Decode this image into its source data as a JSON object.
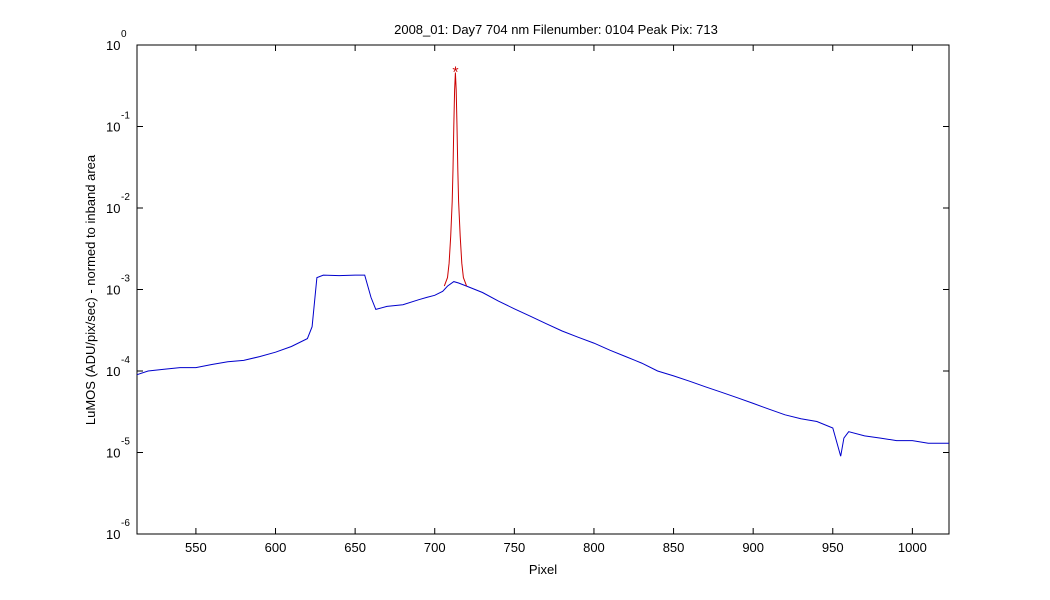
{
  "chart_data": {
    "type": "line",
    "title": "2008_01: Day7  704 nm  Filenumber: 0104 Peak Pix: 713",
    "xlabel": "Pixel",
    "ylabel": "LuMOS (ADU/pix/sec) - normed to inband area",
    "xlim": [
      513,
      1023
    ],
    "ylim": [
      1e-06,
      1
    ],
    "yscale": "log",
    "grid": false,
    "xticks": [
      550,
      600,
      650,
      700,
      750,
      800,
      850,
      900,
      950,
      1000
    ],
    "yticks": [
      {
        "base": "10",
        "exp": "-6",
        "value": 1e-06
      },
      {
        "base": "10",
        "exp": "-5",
        "value": 1e-05
      },
      {
        "base": "10",
        "exp": "-4",
        "value": 0.0001
      },
      {
        "base": "10",
        "exp": "-3",
        "value": 0.001
      },
      {
        "base": "10",
        "exp": "-2",
        "value": 0.01
      },
      {
        "base": "10",
        "exp": "-1",
        "value": 0.1
      },
      {
        "base": "10",
        "exp": "0",
        "value": 1
      }
    ],
    "series": [
      {
        "color": "#0000cc",
        "x": [
          513,
          520,
          530,
          540,
          550,
          560,
          570,
          580,
          590,
          600,
          610,
          620,
          623,
          626,
          630,
          640,
          650,
          656,
          660,
          663,
          670,
          680,
          690,
          695,
          700,
          705,
          708,
          712,
          715,
          720,
          730,
          740,
          750,
          760,
          770,
          780,
          790,
          800,
          810,
          820,
          830,
          840,
          850,
          860,
          870,
          880,
          890,
          900,
          910,
          920,
          930,
          940,
          950,
          955,
          957,
          960,
          970,
          980,
          990,
          1000,
          1010,
          1020,
          1023
        ],
        "y": [
          9e-05,
          0.0001,
          0.000105,
          0.00011,
          0.00011,
          0.00012,
          0.00013,
          0.000135,
          0.00015,
          0.00017,
          0.0002,
          0.00025,
          0.00035,
          0.0014,
          0.0015,
          0.00148,
          0.0015,
          0.0015,
          0.0008,
          0.00057,
          0.00062,
          0.00065,
          0.00075,
          0.0008,
          0.00085,
          0.00095,
          0.0011,
          0.00125,
          0.0012,
          0.0011,
          0.00092,
          0.00072,
          0.00058,
          0.00047,
          0.00038,
          0.00031,
          0.00026,
          0.00022,
          0.00018,
          0.00015,
          0.000125,
          0.0001,
          8.7e-05,
          7.5e-05,
          6.4e-05,
          5.5e-05,
          4.7e-05,
          4e-05,
          3.4e-05,
          2.9e-05,
          2.6e-05,
          2.4e-05,
          2e-05,
          9e-06,
          1.5e-05,
          1.8e-05,
          1.6e-05,
          1.5e-05,
          1.4e-05,
          1.4e-05,
          1.3e-05,
          1.3e-05,
          1.3e-05
        ]
      },
      {
        "color": "#cc0000",
        "x": [
          706,
          708,
          709,
          710,
          711,
          711.5,
          712,
          712.5,
          713,
          713.5,
          714,
          714.5,
          715,
          716,
          717,
          718,
          720
        ],
        "y": [
          0.0011,
          0.0014,
          0.0021,
          0.0045,
          0.012,
          0.03,
          0.1,
          0.28,
          0.46,
          0.28,
          0.1,
          0.03,
          0.012,
          0.0045,
          0.0021,
          0.0014,
          0.0011
        ]
      }
    ],
    "peak_marker": {
      "x": 713,
      "y": 0.5,
      "color": "#cc0000",
      "symbol": "*"
    }
  }
}
